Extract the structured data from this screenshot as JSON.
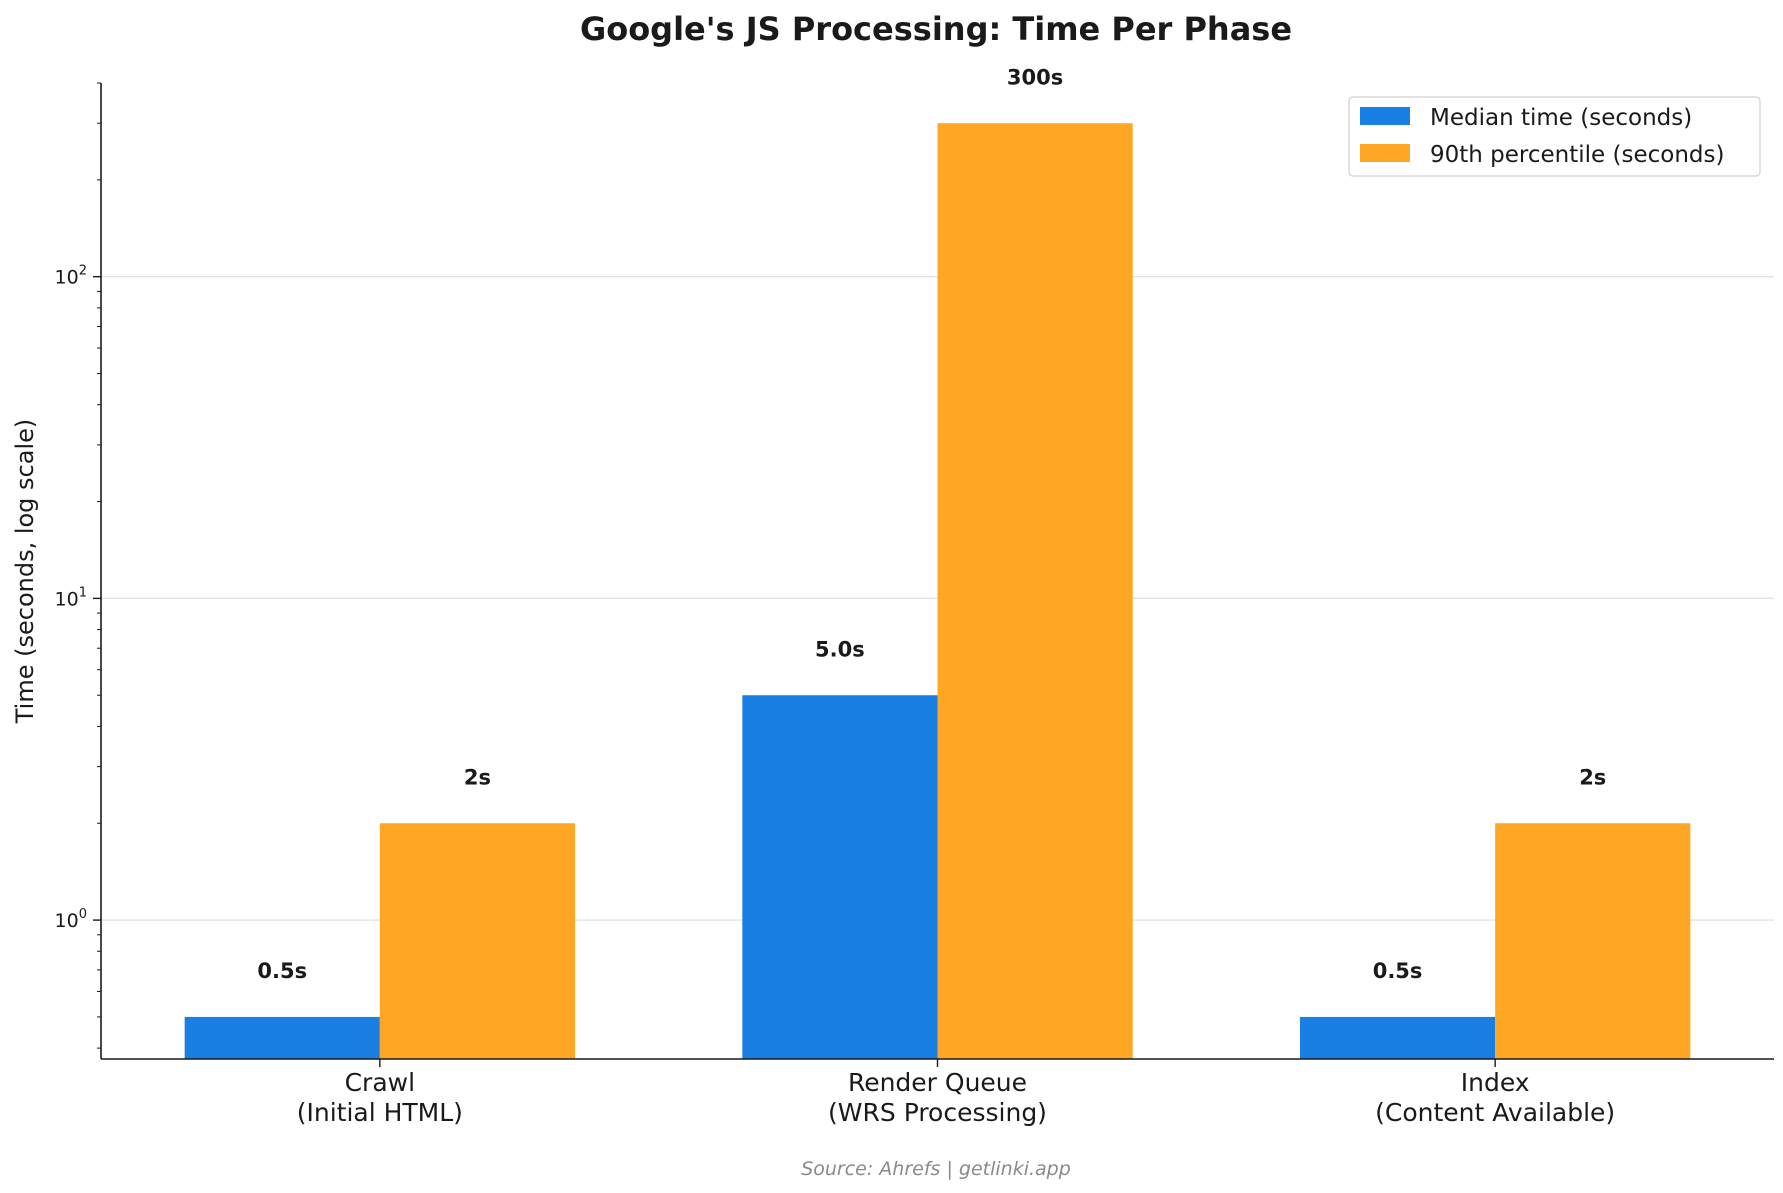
{
  "chart_data": {
    "type": "bar",
    "title": "Google's JS Processing: Time Per Phase",
    "ylabel": "Time (seconds, log scale)",
    "xlabel": "",
    "yscale": "log",
    "ylim": [
      0.37,
      400
    ],
    "grid": "horizontal major",
    "legend_position": "top-right",
    "categories": [
      [
        "Crawl",
        "(Initial HTML)"
      ],
      [
        "Render Queue",
        "(WRS Processing)"
      ],
      [
        "Index",
        "(Content Available)"
      ]
    ],
    "y_ticks": [
      {
        "base": "10",
        "exponent": "0",
        "value": 1
      },
      {
        "base": "10",
        "exponent": "1",
        "value": 10
      },
      {
        "base": "10",
        "exponent": "2",
        "value": 100
      }
    ],
    "series": [
      {
        "name": "Median time (seconds)",
        "color": "#1a7fe3",
        "values": [
          0.5,
          5.0,
          0.5
        ],
        "labels": [
          "0.5s",
          "5.0s",
          "0.5s"
        ]
      },
      {
        "name": "90th percentile (seconds)",
        "color": "#ffa724",
        "values": [
          2,
          300,
          2
        ],
        "labels": [
          "2s",
          "300s",
          "2s"
        ]
      }
    ],
    "source": "Source: Ahrefs | getlinki.app"
  }
}
